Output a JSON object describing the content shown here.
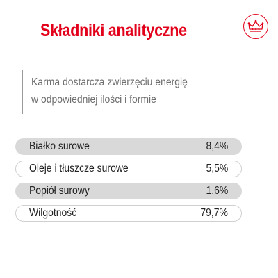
{
  "header": {
    "title": "Składniki analityczne",
    "badge_icon": "crown-icon"
  },
  "intro": {
    "line1": "Karma dostarcza zwierzęciu energię",
    "line2": "w odpowiedniej ilości i formie"
  },
  "nutrients": [
    {
      "label": "Białko surowe",
      "value": "8,4%"
    },
    {
      "label": "Oleje i tłuszcze surowe",
      "value": "5,5%"
    },
    {
      "label": "Popiół surowy",
      "value": "1,6%"
    },
    {
      "label": "Wilgotność",
      "value": "79,7%"
    }
  ],
  "colors": {
    "accent": "#e2001a",
    "row_shade": "#d9d9d9",
    "intro_text": "#6e6e6e"
  }
}
